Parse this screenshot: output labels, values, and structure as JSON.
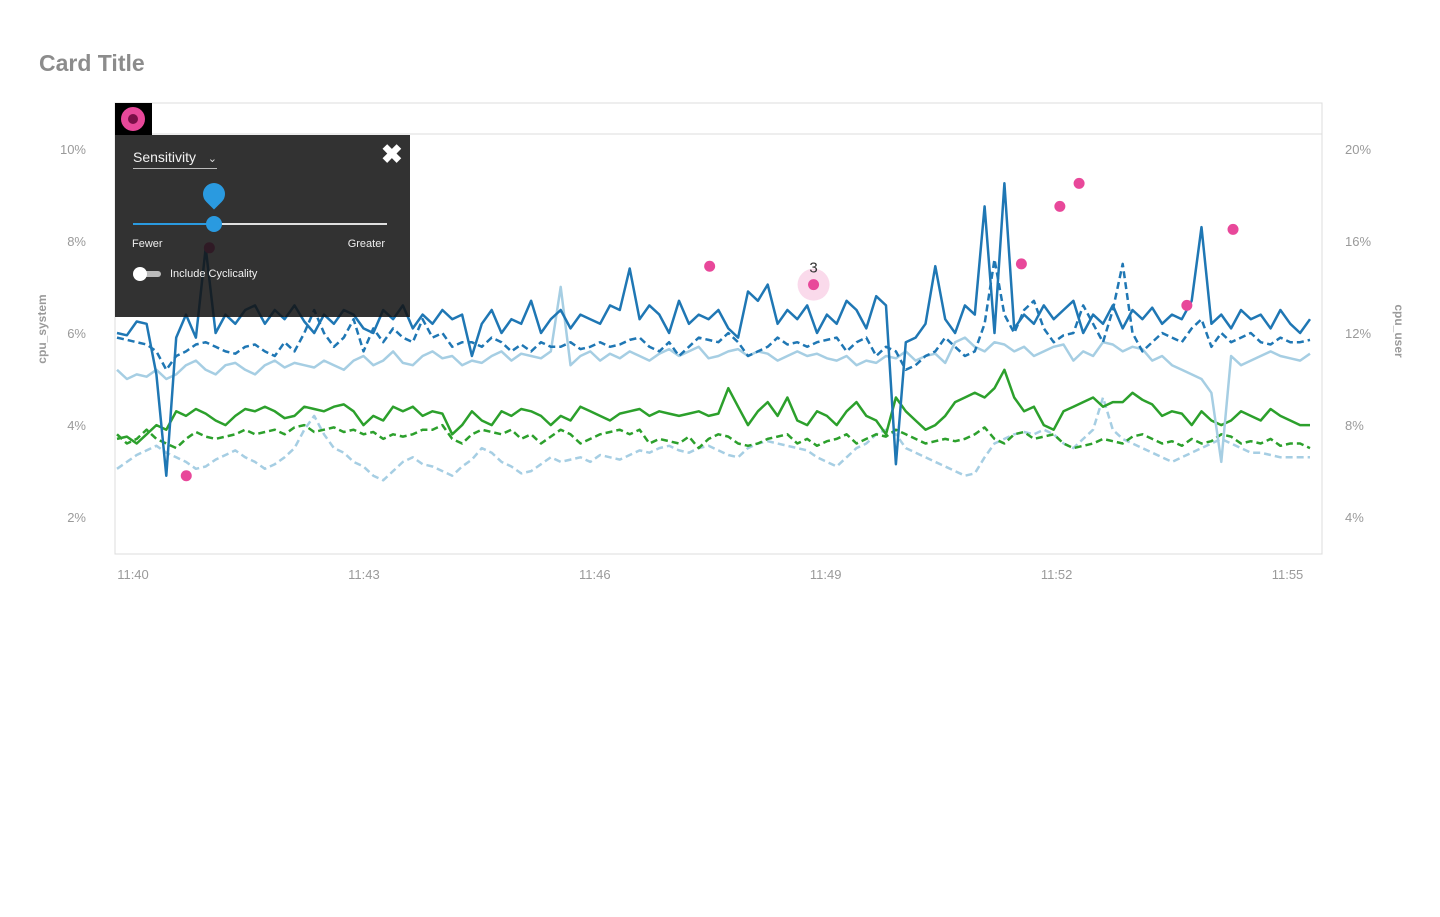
{
  "card": {
    "title": "Card Title"
  },
  "controls": {
    "icon": "anomaly-toggle-icon",
    "sensitivity_label": "Sensitivity",
    "sensitivity_value": 0.32,
    "fewer_label": "Fewer",
    "greater_label": "Greater",
    "cyclicality_label": "Include Cyclicality",
    "cyclicality_on": false,
    "close_icon": "close-icon"
  },
  "colors": {
    "dark_blue": "#1f77b4",
    "light_blue": "#a6cee3",
    "green": "#2ca02c",
    "anomaly": "#e8489a"
  },
  "chart_data": {
    "type": "line",
    "x_ticks": [
      "11:40",
      "11:43",
      "11:46",
      "11:49",
      "11:52",
      "11:55"
    ],
    "x_range": [
      "11:40",
      "11:55.5"
    ],
    "y_left": {
      "label": "cpu_system",
      "ticks": [
        "2%",
        "4%",
        "6%",
        "8%",
        "10%"
      ],
      "range": [
        1.2,
        10.3
      ]
    },
    "y_right": {
      "label": "cpu_user",
      "ticks": [
        "4%",
        "8%",
        "12%",
        "16%",
        "20%"
      ],
      "range": [
        2.4,
        20.6
      ]
    },
    "grid": false,
    "anomaly_cluster_label": "3",
    "series": [
      {
        "axis": "left",
        "color": "#1f77b4",
        "dash": "solid",
        "values": [
          6.0,
          5.95,
          6.25,
          6.2,
          5.1,
          2.9,
          5.9,
          6.4,
          5.9,
          7.85,
          6.0,
          6.4,
          6.2,
          6.5,
          6.6,
          6.2,
          6.5,
          6.3,
          6.6,
          6.25,
          6.0,
          6.4,
          6.2,
          6.5,
          6.4,
          6.1,
          6.0,
          6.5,
          6.3,
          6.6,
          6.1,
          6.4,
          6.2,
          6.5,
          6.3,
          6.4,
          5.5,
          6.2,
          6.5,
          6.0,
          6.3,
          6.2,
          6.7,
          6.0,
          6.3,
          6.5,
          6.1,
          6.4,
          6.3,
          6.2,
          6.6,
          6.5,
          7.4,
          6.3,
          6.6,
          6.4,
          6.0,
          6.7,
          6.2,
          6.4,
          6.3,
          6.5,
          6.1,
          5.9,
          6.9,
          6.7,
          7.05,
          6.2,
          6.5,
          6.3,
          6.6,
          6.0,
          6.4,
          6.2,
          6.7,
          6.5,
          6.1,
          6.8,
          6.6,
          3.15,
          5.8,
          5.9,
          6.2,
          7.45,
          6.3,
          6.0,
          6.6,
          6.4,
          8.75,
          6.0,
          9.25,
          6.1,
          6.4,
          6.2,
          6.6,
          6.3,
          6.5,
          6.7,
          6.0,
          6.4,
          6.2,
          6.6,
          6.1,
          6.5,
          6.3,
          6.55,
          6.2,
          6.4,
          6.3,
          6.7,
          8.3,
          6.2,
          6.4,
          6.1,
          6.5,
          6.3,
          6.4,
          6.1,
          6.5,
          6.2,
          6.0,
          6.3
        ]
      },
      {
        "axis": "left",
        "color": "#1f77b4",
        "dash": "dashed",
        "values": [
          5.9,
          5.85,
          5.8,
          5.75,
          5.6,
          5.2,
          5.5,
          5.6,
          5.75,
          5.8,
          5.7,
          5.6,
          5.55,
          5.7,
          5.75,
          5.6,
          5.5,
          5.8,
          5.6,
          6.0,
          6.5,
          6.0,
          5.7,
          5.9,
          6.3,
          5.6,
          6.1,
          5.8,
          6.1,
          5.9,
          5.8,
          6.3,
          5.9,
          6.0,
          5.7,
          5.8,
          5.8,
          5.7,
          5.9,
          5.8,
          5.6,
          5.75,
          5.6,
          5.8,
          5.7,
          5.7,
          5.8,
          5.65,
          5.7,
          5.8,
          5.7,
          5.75,
          5.85,
          5.9,
          5.7,
          5.6,
          5.8,
          5.5,
          5.7,
          5.9,
          5.85,
          5.8,
          6.0,
          5.8,
          5.5,
          5.6,
          5.7,
          5.9,
          5.75,
          5.8,
          5.7,
          5.8,
          5.85,
          5.9,
          5.6,
          5.8,
          5.9,
          5.5,
          5.7,
          5.6,
          5.2,
          5.3,
          5.5,
          5.6,
          5.9,
          5.7,
          5.5,
          5.6,
          6.2,
          7.6,
          6.4,
          6.0,
          6.5,
          6.7,
          6.1,
          5.8,
          5.95,
          6.0,
          6.6,
          6.2,
          5.8,
          6.5,
          7.5,
          6.0,
          5.6,
          5.8,
          6.0,
          5.9,
          5.8,
          6.1,
          6.3,
          5.7,
          6.0,
          5.8,
          5.9,
          6.0,
          5.8,
          5.75,
          5.9,
          5.8,
          5.8,
          5.85
        ]
      },
      {
        "axis": "left",
        "color": "#a6cee3",
        "dash": "solid",
        "values": [
          5.2,
          5.0,
          5.1,
          5.05,
          5.2,
          5.0,
          5.1,
          5.3,
          5.4,
          5.2,
          5.1,
          5.3,
          5.35,
          5.2,
          5.1,
          5.3,
          5.4,
          5.25,
          5.35,
          5.3,
          5.25,
          5.4,
          5.3,
          5.2,
          5.4,
          5.5,
          5.3,
          5.4,
          5.6,
          5.35,
          5.3,
          5.5,
          5.6,
          5.45,
          5.5,
          5.3,
          5.4,
          5.35,
          5.5,
          5.6,
          5.4,
          5.55,
          5.5,
          5.45,
          5.6,
          7.0,
          5.3,
          5.5,
          5.6,
          5.4,
          5.55,
          5.45,
          5.6,
          5.5,
          5.4,
          5.55,
          5.65,
          5.5,
          5.6,
          5.7,
          5.45,
          5.5,
          5.6,
          5.65,
          5.5,
          5.6,
          5.55,
          5.4,
          5.5,
          5.6,
          5.5,
          5.55,
          5.45,
          5.4,
          5.5,
          5.3,
          5.4,
          5.35,
          5.5,
          5.45,
          5.6,
          5.4,
          5.5,
          5.55,
          5.35,
          5.8,
          5.9,
          5.7,
          5.6,
          5.8,
          5.75,
          5.6,
          5.7,
          5.5,
          5.6,
          5.7,
          5.75,
          5.4,
          5.6,
          5.5,
          5.8,
          5.75,
          5.6,
          5.7,
          5.65,
          5.4,
          5.5,
          5.3,
          5.2,
          5.1,
          5.0,
          4.7,
          3.2,
          5.5,
          5.3,
          5.4,
          5.5,
          5.6,
          5.5,
          5.45,
          5.4,
          5.55
        ]
      },
      {
        "axis": "left",
        "color": "#2ca02c",
        "dash": "solid",
        "values": [
          3.7,
          3.75,
          3.6,
          3.8,
          4.0,
          3.9,
          4.3,
          4.2,
          4.35,
          4.25,
          4.1,
          4.0,
          4.2,
          4.35,
          4.3,
          4.4,
          4.3,
          4.15,
          4.2,
          4.4,
          4.35,
          4.3,
          4.4,
          4.45,
          4.3,
          4.0,
          4.2,
          4.1,
          4.4,
          4.3,
          4.4,
          4.2,
          4.3,
          4.25,
          3.8,
          4.0,
          4.3,
          4.1,
          4.0,
          4.3,
          4.2,
          4.35,
          4.3,
          4.2,
          4.0,
          4.2,
          4.1,
          4.4,
          4.3,
          4.2,
          4.1,
          4.25,
          4.3,
          4.35,
          4.2,
          4.3,
          4.25,
          4.2,
          4.25,
          4.3,
          4.2,
          4.25,
          4.8,
          4.4,
          4.0,
          4.3,
          4.5,
          4.2,
          4.6,
          4.1,
          4.0,
          4.3,
          4.2,
          4.0,
          4.3,
          4.5,
          4.2,
          4.1,
          3.8,
          4.6,
          4.3,
          4.1,
          3.9,
          4.0,
          4.2,
          4.5,
          4.6,
          4.7,
          4.6,
          4.8,
          5.2,
          4.6,
          4.3,
          4.4,
          4.0,
          3.9,
          4.3,
          4.4,
          4.5,
          4.6,
          4.4,
          4.5,
          4.5,
          4.7,
          4.55,
          4.45,
          4.2,
          4.3,
          4.25,
          4.0,
          4.3,
          4.1,
          4.0,
          4.1,
          4.3,
          4.2,
          4.1,
          4.35,
          4.2,
          4.1,
          4.0,
          4.0
        ]
      },
      {
        "axis": "left",
        "color": "#2ca02c",
        "dash": "dashed",
        "values": [
          3.8,
          3.6,
          3.7,
          3.9,
          3.7,
          3.6,
          3.5,
          3.7,
          3.85,
          3.75,
          3.7,
          3.75,
          3.8,
          3.9,
          3.8,
          3.85,
          3.9,
          3.8,
          3.95,
          4.0,
          3.85,
          3.9,
          3.95,
          3.85,
          3.9,
          3.8,
          3.85,
          3.7,
          3.8,
          3.75,
          3.8,
          3.9,
          3.9,
          4.0,
          3.7,
          3.6,
          3.8,
          3.9,
          3.85,
          3.8,
          3.9,
          3.7,
          3.8,
          3.6,
          3.75,
          3.9,
          3.8,
          3.6,
          3.7,
          3.8,
          3.85,
          3.9,
          3.8,
          3.9,
          3.6,
          3.7,
          3.65,
          3.6,
          3.75,
          3.5,
          3.7,
          3.8,
          3.75,
          3.6,
          3.55,
          3.6,
          3.7,
          3.75,
          3.8,
          3.6,
          3.7,
          3.55,
          3.65,
          3.7,
          3.8,
          3.6,
          3.7,
          3.8,
          3.75,
          3.9,
          3.8,
          3.7,
          3.6,
          3.65,
          3.7,
          3.65,
          3.7,
          3.8,
          3.95,
          3.7,
          3.6,
          3.8,
          3.85,
          3.7,
          3.75,
          3.8,
          3.6,
          3.5,
          3.55,
          3.6,
          3.7,
          3.65,
          3.6,
          3.75,
          3.8,
          3.7,
          3.6,
          3.65,
          3.55,
          3.7,
          3.6,
          3.65,
          3.8,
          3.75,
          3.6,
          3.65,
          3.6,
          3.7,
          3.55,
          3.6,
          3.6,
          3.5
        ]
      },
      {
        "axis": "left",
        "color": "#a6cee3",
        "dash": "dashed",
        "values": [
          3.05,
          3.2,
          3.35,
          3.45,
          3.55,
          3.4,
          3.3,
          3.2,
          3.05,
          3.1,
          3.25,
          3.35,
          3.45,
          3.3,
          3.2,
          3.05,
          3.15,
          3.3,
          3.5,
          3.9,
          4.2,
          3.8,
          3.5,
          3.4,
          3.2,
          3.1,
          2.9,
          2.8,
          3.0,
          3.2,
          3.3,
          3.15,
          3.1,
          3.0,
          2.9,
          3.1,
          3.25,
          3.5,
          3.4,
          3.2,
          3.1,
          2.95,
          3.0,
          3.15,
          3.3,
          3.2,
          3.25,
          3.3,
          3.2,
          3.35,
          3.3,
          3.25,
          3.35,
          3.45,
          3.4,
          3.5,
          3.55,
          3.45,
          3.4,
          3.5,
          3.55,
          3.45,
          3.35,
          3.3,
          3.5,
          3.6,
          3.65,
          3.6,
          3.55,
          3.5,
          3.45,
          3.3,
          3.2,
          3.1,
          3.3,
          3.5,
          3.6,
          3.8,
          3.9,
          3.8,
          3.5,
          3.4,
          3.3,
          3.2,
          3.1,
          3.0,
          2.9,
          2.95,
          3.3,
          3.6,
          3.7,
          3.8,
          3.85,
          3.8,
          3.9,
          3.8,
          3.6,
          3.5,
          3.7,
          3.9,
          4.6,
          3.9,
          3.7,
          3.6,
          3.5,
          3.4,
          3.3,
          3.2,
          3.3,
          3.4,
          3.5,
          3.6,
          3.7,
          3.6,
          3.5,
          3.4,
          3.4,
          3.35,
          3.3,
          3.3,
          3.3,
          3.3
        ]
      }
    ],
    "anomalies": [
      {
        "x": "11:40.9",
        "y": 2.9
      },
      {
        "x": "11:41.2",
        "y": 7.85
      },
      {
        "x": "11:47.7",
        "y": 7.45
      },
      {
        "x": "11:49.05",
        "y": 7.05
      },
      {
        "x": "11:51.75",
        "y": 7.5
      },
      {
        "x": "11:52.25",
        "y": 8.75
      },
      {
        "x": "11:52.5",
        "y": 9.25
      },
      {
        "x": "11:53.9",
        "y": 6.6
      },
      {
        "x": "11:54.5",
        "y": 8.25
      }
    ],
    "highlighted_anomaly": 3
  }
}
